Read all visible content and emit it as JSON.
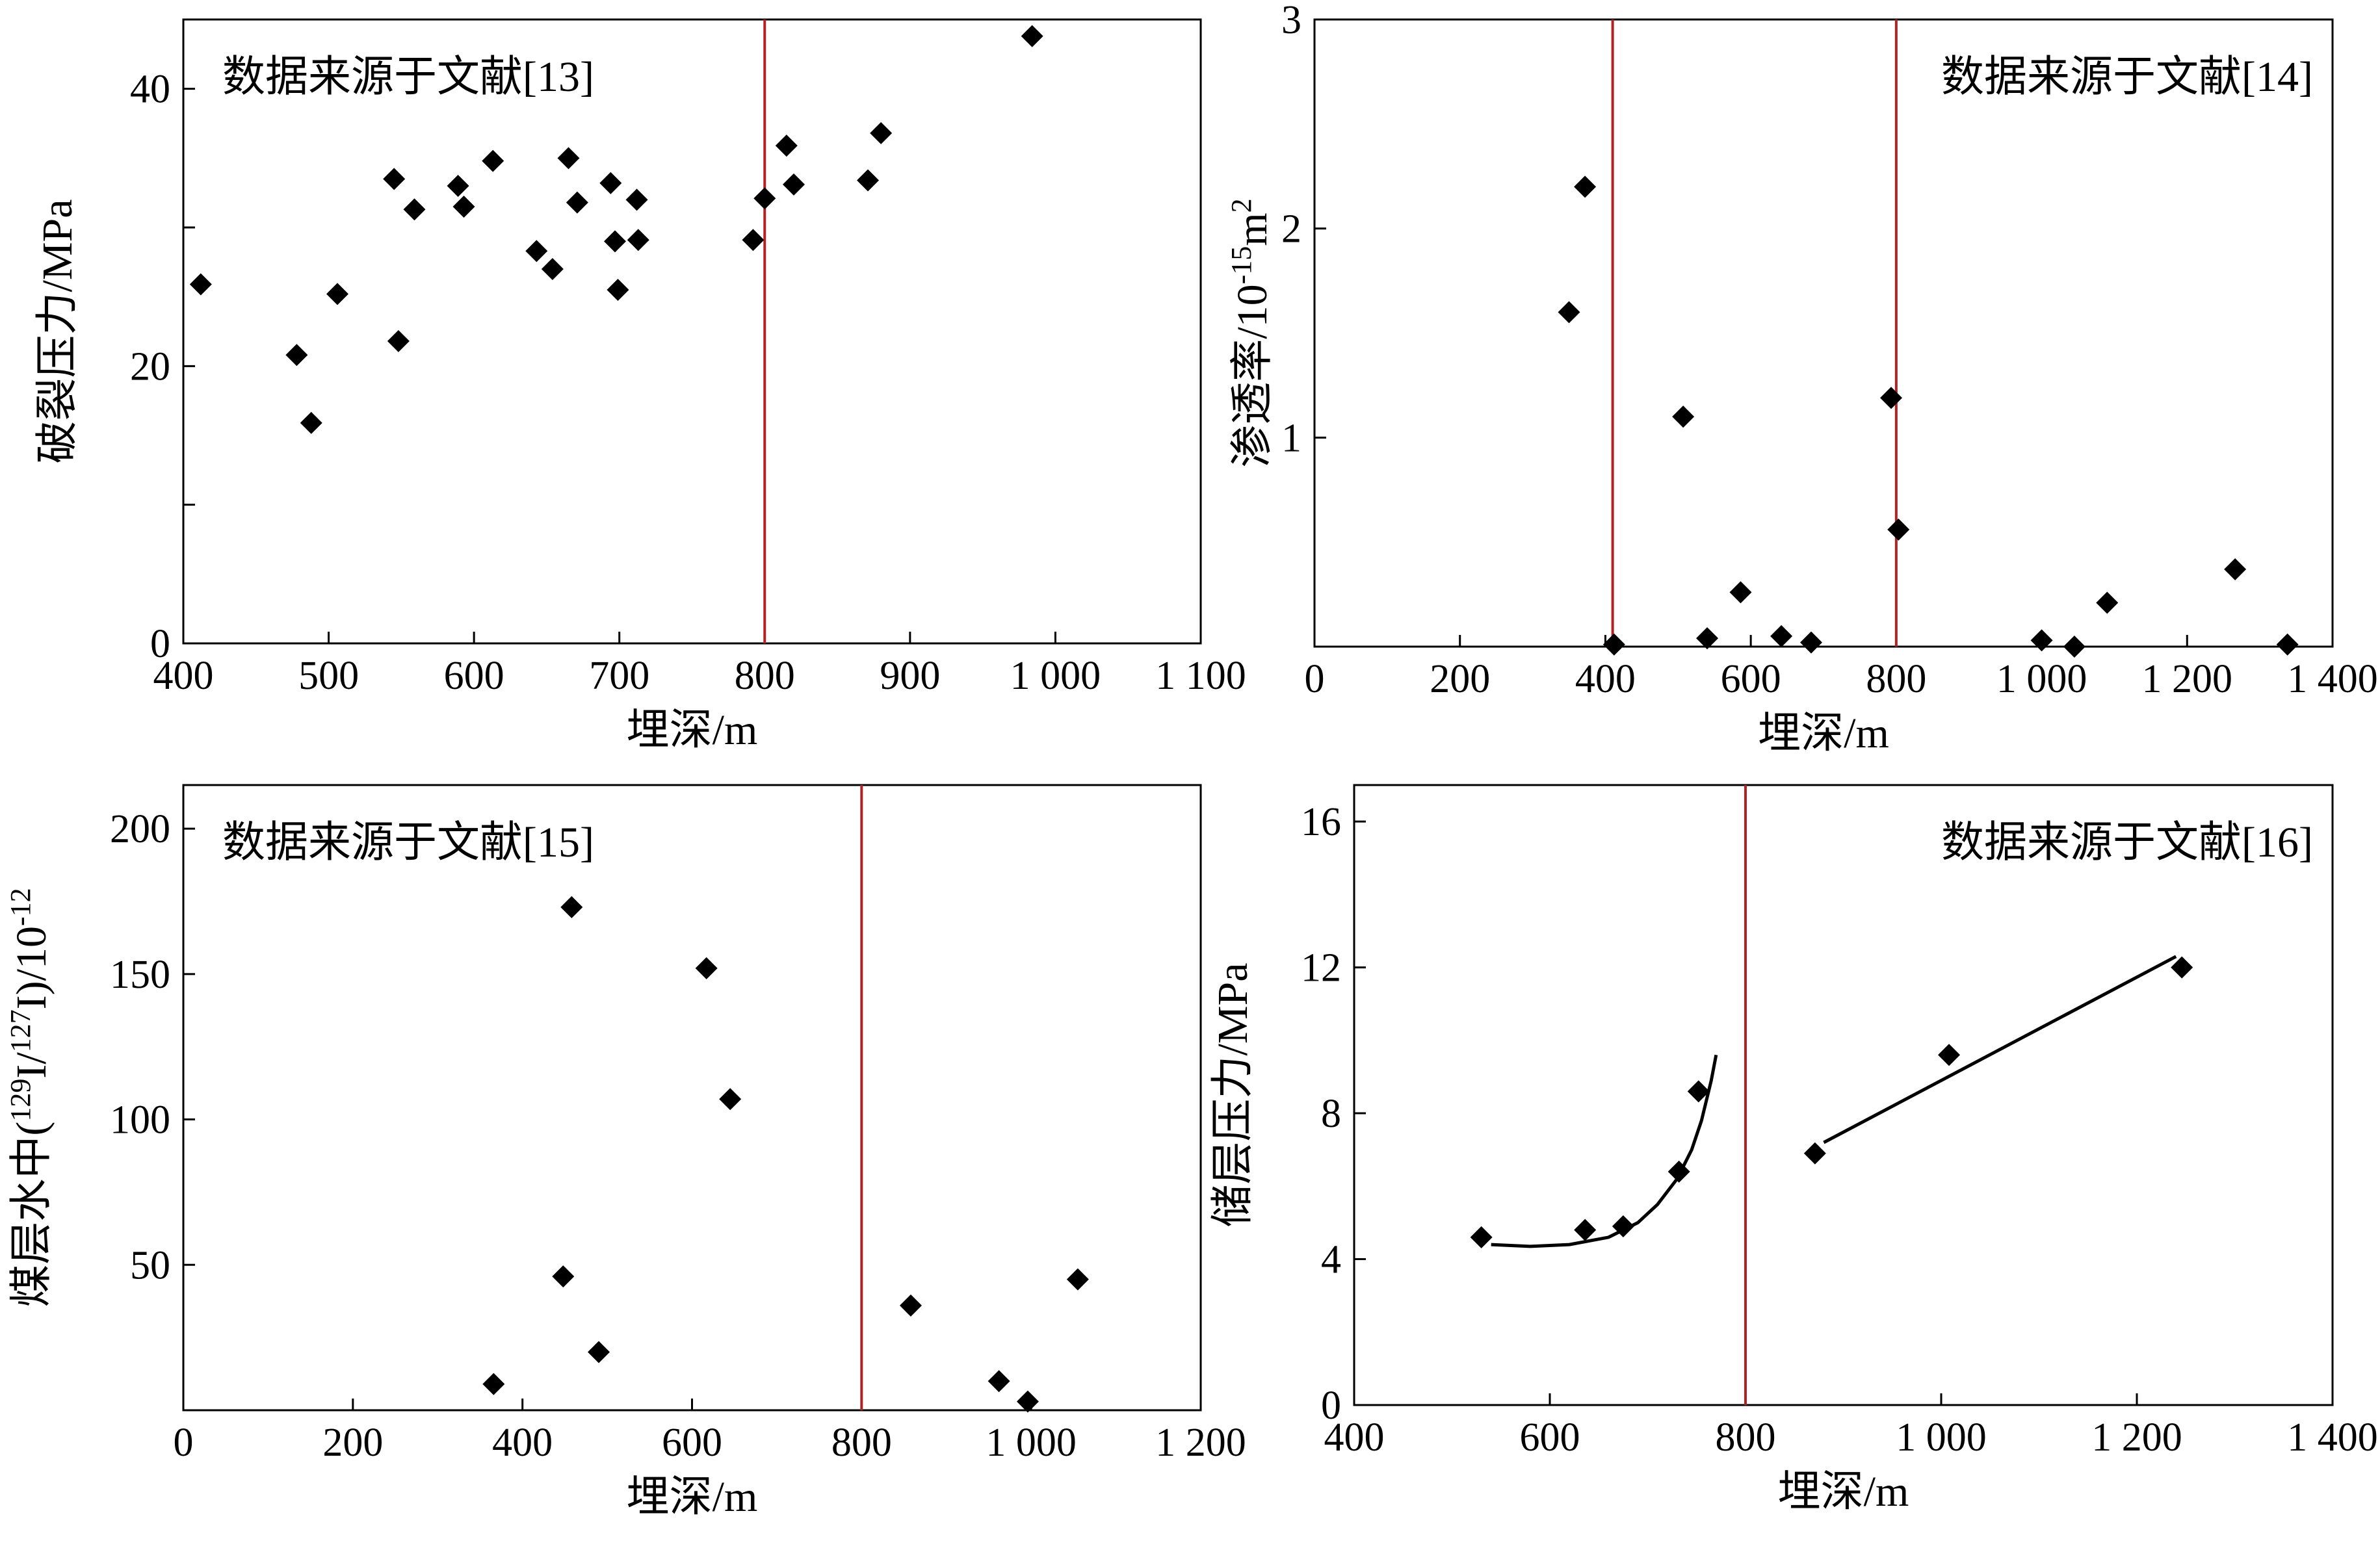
{
  "chart_data": [
    {
      "id": "p1",
      "type": "scatter",
      "xlabel": "埋深/m",
      "ylabel": "破裂压力/MPa",
      "annotation": "数据来源于文献[13]",
      "annotation_pos": "top-left",
      "xlim": [
        400,
        1100
      ],
      "ylim": [
        0,
        45
      ],
      "xticks": [
        400,
        500,
        600,
        700,
        800,
        900,
        1000,
        1100
      ],
      "xtick_labels": [
        "400",
        "500",
        "600",
        "700",
        "800",
        "900",
        "1 000",
        "1 100"
      ],
      "yticks": [
        0,
        10,
        20,
        30,
        40
      ],
      "ytick_labels": [
        "0",
        "",
        "20",
        "",
        "40"
      ],
      "vlines": [
        800
      ],
      "grid": false,
      "points": [
        [
          412,
          25.9
        ],
        [
          478,
          20.8
        ],
        [
          488,
          15.9
        ],
        [
          506,
          25.2
        ],
        [
          545,
          33.5
        ],
        [
          548,
          21.8
        ],
        [
          559,
          31.3
        ],
        [
          589,
          33.0
        ],
        [
          593,
          31.5
        ],
        [
          613,
          34.8
        ],
        [
          643,
          28.3
        ],
        [
          654,
          27.0
        ],
        [
          665,
          35.0
        ],
        [
          671,
          31.8
        ],
        [
          694,
          33.2
        ],
        [
          697,
          29.0
        ],
        [
          699,
          25.5
        ],
        [
          712,
          32.0
        ],
        [
          713,
          29.1
        ],
        [
          792,
          29.1
        ],
        [
          800,
          32.1
        ],
        [
          815,
          35.9
        ],
        [
          820,
          33.1
        ],
        [
          871,
          33.4
        ],
        [
          880,
          36.8
        ],
        [
          984,
          43.8
        ]
      ]
    },
    {
      "id": "p2",
      "type": "scatter",
      "xlabel": "埋深/m",
      "ylabel": "渗透率/10<sup>-15</sup>m<sup>2</sup>",
      "ylabel_parts": [
        "渗透率/10",
        "-15",
        "m",
        "2"
      ],
      "annotation": "数据来源于文献[14]",
      "annotation_pos": "top-right",
      "xlim": [
        0,
        1400
      ],
      "ylim": [
        0,
        3
      ],
      "xticks": [
        0,
        200,
        400,
        600,
        800,
        1000,
        1200,
        1400
      ],
      "xtick_labels": [
        "0",
        "200",
        "400",
        "600",
        "800",
        "1 000",
        "1 200",
        "1 400"
      ],
      "yticks": [
        0,
        1,
        2,
        3
      ],
      "ytick_labels": [
        "",
        "1",
        "2",
        "3"
      ],
      "vlines": [
        410,
        800
      ],
      "grid": false,
      "points": [
        [
          350,
          1.6
        ],
        [
          372,
          2.2
        ],
        [
          412,
          0.01
        ],
        [
          507,
          1.1
        ],
        [
          540,
          0.04
        ],
        [
          586,
          0.26
        ],
        [
          642,
          0.05
        ],
        [
          683,
          0.02
        ],
        [
          793,
          1.19
        ],
        [
          803,
          0.56
        ],
        [
          1000,
          0.03
        ],
        [
          1045,
          0.0
        ],
        [
          1090,
          0.21
        ],
        [
          1266,
          0.37
        ],
        [
          1338,
          0.01
        ]
      ]
    },
    {
      "id": "p3",
      "type": "scatter",
      "xlabel": "埋深/m",
      "ylabel": "煤层水中(<sup>129</sup>I/<sup>127</sup>I)/10<sup>-12</sup>",
      "ylabel_parts": [
        "煤层水中(",
        "129",
        "I/",
        "127",
        "I)/10",
        "-12"
      ],
      "annotation": "数据来源于文献[15]",
      "annotation_pos": "top-left",
      "xlim": [
        0,
        1200
      ],
      "ylim": [
        0,
        215
      ],
      "xticks": [
        0,
        200,
        400,
        600,
        800,
        1000,
        1200
      ],
      "xtick_labels": [
        "0",
        "200",
        "400",
        "600",
        "800",
        "1 000",
        "1 200"
      ],
      "yticks": [
        0,
        50,
        100,
        150,
        200
      ],
      "ytick_labels": [
        "",
        "50",
        "100",
        "150",
        "200"
      ],
      "vlines": [
        800
      ],
      "grid": false,
      "points": [
        [
          366,
          9
        ],
        [
          448,
          46
        ],
        [
          458,
          173
        ],
        [
          490,
          20
        ],
        [
          617,
          152
        ],
        [
          645,
          107
        ],
        [
          858,
          36
        ],
        [
          962,
          10
        ],
        [
          996,
          3
        ],
        [
          1055,
          45
        ]
      ]
    },
    {
      "id": "p4",
      "type": "scatter",
      "xlabel": "埋深/m",
      "ylabel": "储层压力/MPa",
      "annotation": "数据来源于文献[16]",
      "annotation_pos": "top-right",
      "xlim": [
        400,
        1400
      ],
      "ylim": [
        0,
        17
      ],
      "xticks": [
        400,
        600,
        800,
        1000,
        1200,
        1400
      ],
      "xtick_labels": [
        "400",
        "600",
        "800",
        "1 000",
        "1 200",
        "1 400"
      ],
      "yticks": [
        0,
        4,
        8,
        12,
        16
      ],
      "ytick_labels": [
        "0",
        "4",
        "8",
        "12",
        "16"
      ],
      "vlines": [
        800
      ],
      "grid": false,
      "points": [
        [
          530,
          4.6
        ],
        [
          636,
          4.8
        ],
        [
          675,
          4.9
        ],
        [
          732,
          6.4
        ],
        [
          752,
          8.6
        ],
        [
          871,
          6.9
        ],
        [
          1008,
          9.6
        ],
        [
          1246,
          12.0
        ]
      ],
      "curves": [
        {
          "points": [
            [
              540,
              4.4
            ],
            [
              580,
              4.35
            ],
            [
              620,
              4.4
            ],
            [
              660,
              4.6
            ],
            [
              690,
              5.0
            ],
            [
              710,
              5.5
            ],
            [
              730,
              6.2
            ],
            [
              745,
              7.0
            ],
            [
              755,
              7.8
            ],
            [
              765,
              8.9
            ],
            [
              770,
              9.6
            ]
          ]
        },
        {
          "points": [
            [
              880,
              7.2
            ],
            [
              1240,
              12.3
            ]
          ]
        }
      ]
    }
  ]
}
